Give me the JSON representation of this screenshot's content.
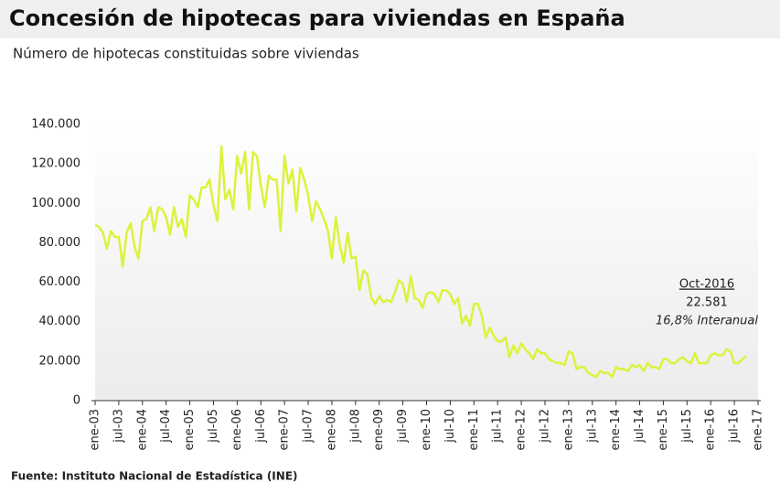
{
  "chart_data": {
    "type": "line",
    "title": "Concesión de hipotecas para viviendas en España",
    "subtitle": "Número de hipotecas constituidas sobre viviendas",
    "source": "Fuente: Instituto Nacional de Estadística (INE)",
    "annotation": {
      "date": "Oct-2016",
      "value": "22.581",
      "note": "16,8% Interanual"
    },
    "categories": [
      "ene-03",
      null,
      null,
      null,
      null,
      null,
      "jul-03",
      null,
      null,
      null,
      null,
      null,
      "ene-04",
      null,
      null,
      null,
      null,
      null,
      "jul-04",
      null,
      null,
      null,
      null,
      null,
      "ene-05",
      null,
      null,
      null,
      null,
      null,
      "jul-05",
      null,
      null,
      null,
      null,
      null,
      "ene-06",
      null,
      null,
      null,
      null,
      null,
      "jul-06",
      null,
      null,
      null,
      null,
      null,
      "ene-07",
      null,
      null,
      null,
      null,
      null,
      "jul-07",
      null,
      null,
      null,
      null,
      null,
      "ene-08",
      null,
      null,
      null,
      null,
      null,
      "jul-08",
      null,
      null,
      null,
      null,
      null,
      "ene-09",
      null,
      null,
      null,
      null,
      null,
      "jul-09",
      null,
      null,
      null,
      null,
      null,
      "ene-10",
      null,
      null,
      null,
      null,
      null,
      "jul-10",
      null,
      null,
      null,
      null,
      null,
      "ene-11",
      null,
      null,
      null,
      null,
      null,
      "jul-11",
      null,
      null,
      null,
      null,
      null,
      "ene-12",
      null,
      null,
      null,
      null,
      null,
      "jul-12",
      null,
      null,
      null,
      null,
      null,
      "ene-13",
      null,
      null,
      null,
      null,
      null,
      "jul-13",
      null,
      null,
      null,
      null,
      null,
      "ene-14",
      null,
      null,
      null,
      null,
      null,
      "jul-14",
      null,
      null,
      null,
      null,
      null,
      "ene-15",
      null,
      null,
      null,
      null,
      null,
      "jul-15",
      null,
      null,
      null,
      null,
      null,
      "ene-16",
      null,
      null,
      null,
      null,
      null,
      "jul-16",
      null,
      null,
      null,
      null,
      null,
      "ene-17"
    ],
    "values": [
      89000,
      88000,
      85000,
      77000,
      86000,
      83000,
      83000,
      68000,
      85000,
      90000,
      78000,
      72000,
      91000,
      92000,
      98000,
      86000,
      98000,
      97000,
      93000,
      84000,
      98000,
      88000,
      92000,
      83000,
      104000,
      102000,
      98000,
      108000,
      108000,
      112000,
      99000,
      91000,
      129000,
      102000,
      107000,
      97000,
      124000,
      115000,
      126000,
      97000,
      126000,
      124000,
      109000,
      98000,
      114000,
      112000,
      112000,
      86000,
      124000,
      110000,
      117000,
      96000,
      118000,
      112000,
      104000,
      91000,
      101000,
      97000,
      92000,
      86000,
      72000,
      93000,
      79000,
      70000,
      85000,
      72000,
      73000,
      56000,
      66000,
      64000,
      52000,
      49000,
      53000,
      50000,
      51000,
      50000,
      55000,
      61000,
      59000,
      50000,
      63000,
      52000,
      51000,
      47000,
      54000,
      55000,
      54000,
      50000,
      56000,
      56000,
      54000,
      49000,
      52000,
      39000,
      43000,
      38000,
      49000,
      49000,
      43000,
      32000,
      37000,
      33000,
      30000,
      30000,
      32000,
      22000,
      28000,
      24000,
      29000,
      26000,
      24000,
      21000,
      26000,
      24000,
      24000,
      21000,
      20000,
      19000,
      19000,
      18000,
      25000,
      24000,
      16000,
      17000,
      17000,
      14000,
      13000,
      12000,
      15000,
      14000,
      14000,
      12000,
      17000,
      16000,
      16000,
      15000,
      18000,
      17000,
      18000,
      15000,
      19000,
      17000,
      17000,
      16000,
      21000,
      21000,
      19000,
      19000,
      21000,
      22000,
      20000,
      19000,
      24000,
      19000,
      19000,
      19000,
      23000,
      24000,
      23000,
      23000,
      26000,
      25000,
      19000,
      19000,
      21000,
      22581,
      null,
      null,
      null
    ],
    "color": "#dcf23c",
    "ylim": [
      0,
      140000
    ],
    "yticks": [
      0,
      {
        "value": 20000,
        "label": "20.000"
      },
      {
        "value": 40000,
        "label": "40.000"
      },
      {
        "value": 60000,
        "label": "60.000"
      },
      {
        "value": 80000,
        "label": "80.000"
      },
      {
        "value": 100000,
        "label": "100.000"
      },
      {
        "value": 120000,
        "label": "120.000"
      },
      {
        "value": 140000,
        "label": "140.000"
      }
    ],
    "grid": false
  }
}
